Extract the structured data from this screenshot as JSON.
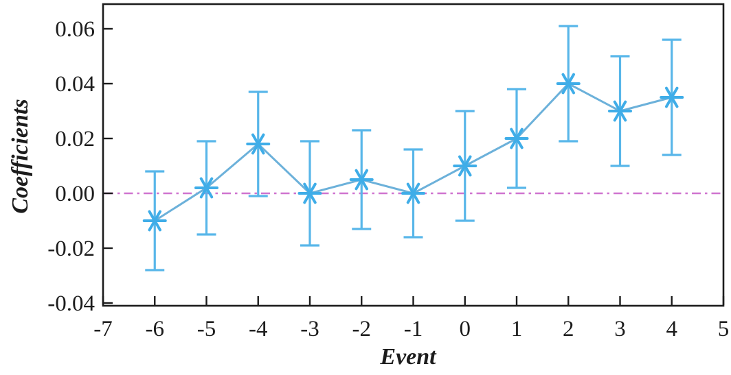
{
  "figure": {
    "background": "#ffffff"
  },
  "chart_data": {
    "type": "line",
    "subtype": "event-study-errorbar",
    "title": "",
    "xlabel": "Event",
    "ylabel": "Coefficients",
    "x": [
      -6,
      -5,
      -4,
      -3,
      -2,
      -1,
      0,
      1,
      2,
      3,
      4
    ],
    "series": [
      {
        "name": "coefficients",
        "values": [
          -0.01,
          0.002,
          0.018,
          0.0,
          0.005,
          0.0,
          0.01,
          0.02,
          0.04,
          0.03,
          0.035
        ],
        "ci_low": [
          -0.028,
          -0.015,
          -0.001,
          -0.019,
          -0.013,
          -0.016,
          -0.01,
          0.002,
          0.019,
          0.01,
          0.014
        ],
        "ci_high": [
          0.008,
          0.019,
          0.037,
          0.019,
          0.023,
          0.016,
          0.03,
          0.038,
          0.061,
          0.05,
          0.056
        ]
      }
    ],
    "xlim": [
      -7,
      5
    ],
    "ylim": [
      -0.041,
      0.069
    ],
    "xticks": [
      -7,
      -6,
      -5,
      -4,
      -3,
      -2,
      -1,
      0,
      1,
      2,
      3,
      4,
      5
    ],
    "xtick_labels": [
      "-7",
      "-6",
      "-5",
      "-4",
      "-3",
      "-2",
      "-1",
      "0",
      "1",
      "2",
      "3",
      "4",
      "5"
    ],
    "ytick_values": [
      0.06,
      0.04,
      0.02,
      0.0,
      -0.02,
      -0.04
    ],
    "ytick_labels": [
      "0.06",
      "0.04",
      "0.02",
      "0.00",
      "-0.02",
      "-0.04"
    ],
    "reference_line": {
      "y": 0.0,
      "style": "dash-dot",
      "color": "#cf74cf"
    },
    "marker": "asterisk-6-point",
    "grid": false,
    "legend": null,
    "colors": {
      "line": "#6cb1da",
      "marker": "#3fade8",
      "errorbar": "#58b6e9",
      "axis": "#1c1c1c",
      "background": "#ffffff"
    }
  }
}
